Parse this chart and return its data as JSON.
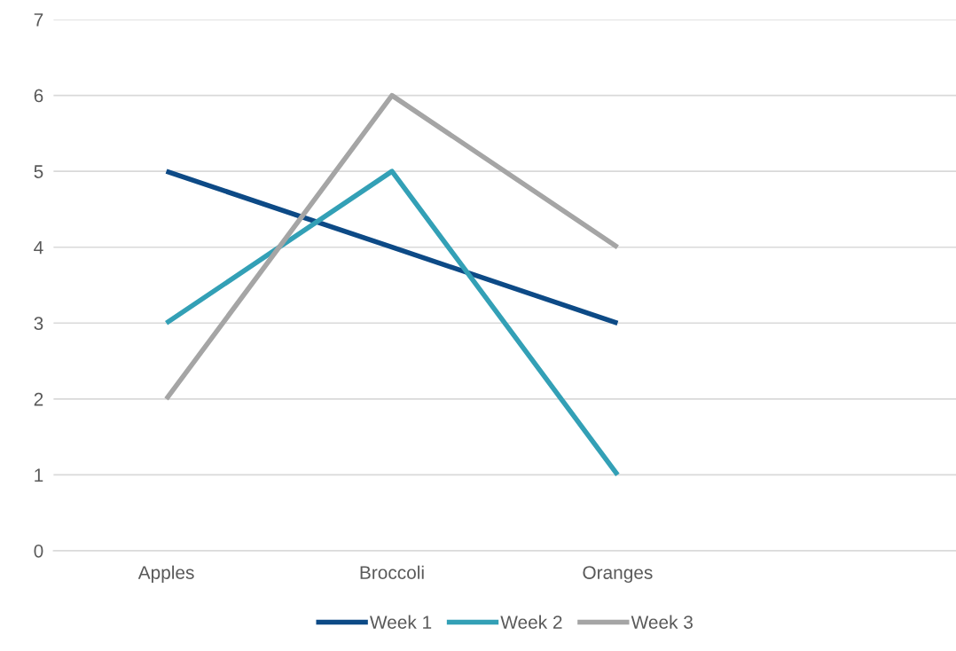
{
  "chart_data": {
    "type": "line",
    "categories": [
      "Apples",
      "Broccoli",
      "Oranges",
      null
    ],
    "series": [
      {
        "name": "Week 1",
        "color": "#0d4a86",
        "values": [
          5,
          4,
          3,
          null
        ]
      },
      {
        "name": "Week 2",
        "color": "#33a0b6",
        "values": [
          3,
          5,
          1,
          null
        ]
      },
      {
        "name": "Week 3",
        "color": "#a5a5a5",
        "values": [
          2,
          6,
          4,
          null
        ]
      }
    ],
    "ylim": [
      0,
      7
    ],
    "yticks": [
      0,
      1,
      2,
      3,
      4,
      5,
      6,
      7
    ],
    "grid": "y",
    "legend": "bottom",
    "marker": "none",
    "line_style": "solid"
  }
}
